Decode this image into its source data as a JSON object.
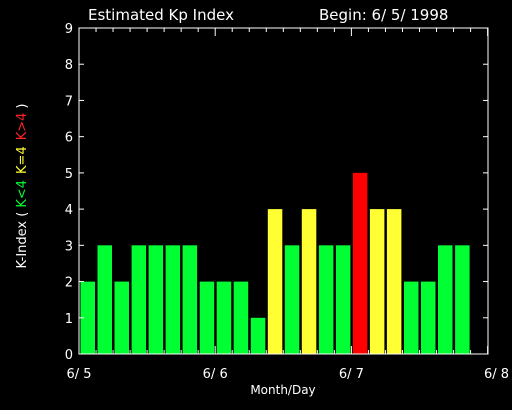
{
  "header": {
    "title": "Estimated Kp Index",
    "begin_label": "Begin: 6/ 5/ 1998"
  },
  "colors": {
    "background": "#000000",
    "axis": "#ffffff",
    "low": "#00ff33",
    "equal": "#ffff33",
    "high": "#ff0000"
  },
  "chart_data": {
    "type": "bar",
    "title": "Estimated Kp Index",
    "begin": "Begin: 6/ 5/ 1998",
    "xlabel": "Month/Day",
    "ylabel": {
      "prefix": "K-Index (",
      "low": "K<4",
      "equal": "K=4",
      "high": "K>4",
      "suffix": ")"
    },
    "ylim": [
      0,
      9
    ],
    "y_ticks": [
      "0",
      "1",
      "2",
      "3",
      "4",
      "5",
      "6",
      "7",
      "8",
      "9"
    ],
    "x_ticks": [
      "6/ 5",
      "6/ 6",
      "6/ 7",
      "6/ 8"
    ],
    "interval_hours": 3,
    "values": [
      2,
      3,
      2,
      3,
      3,
      3,
      3,
      2,
      2,
      2,
      1,
      4,
      3,
      4,
      3,
      3,
      5,
      4,
      4,
      2,
      2,
      3,
      3
    ],
    "grid": false,
    "legend": "none"
  }
}
